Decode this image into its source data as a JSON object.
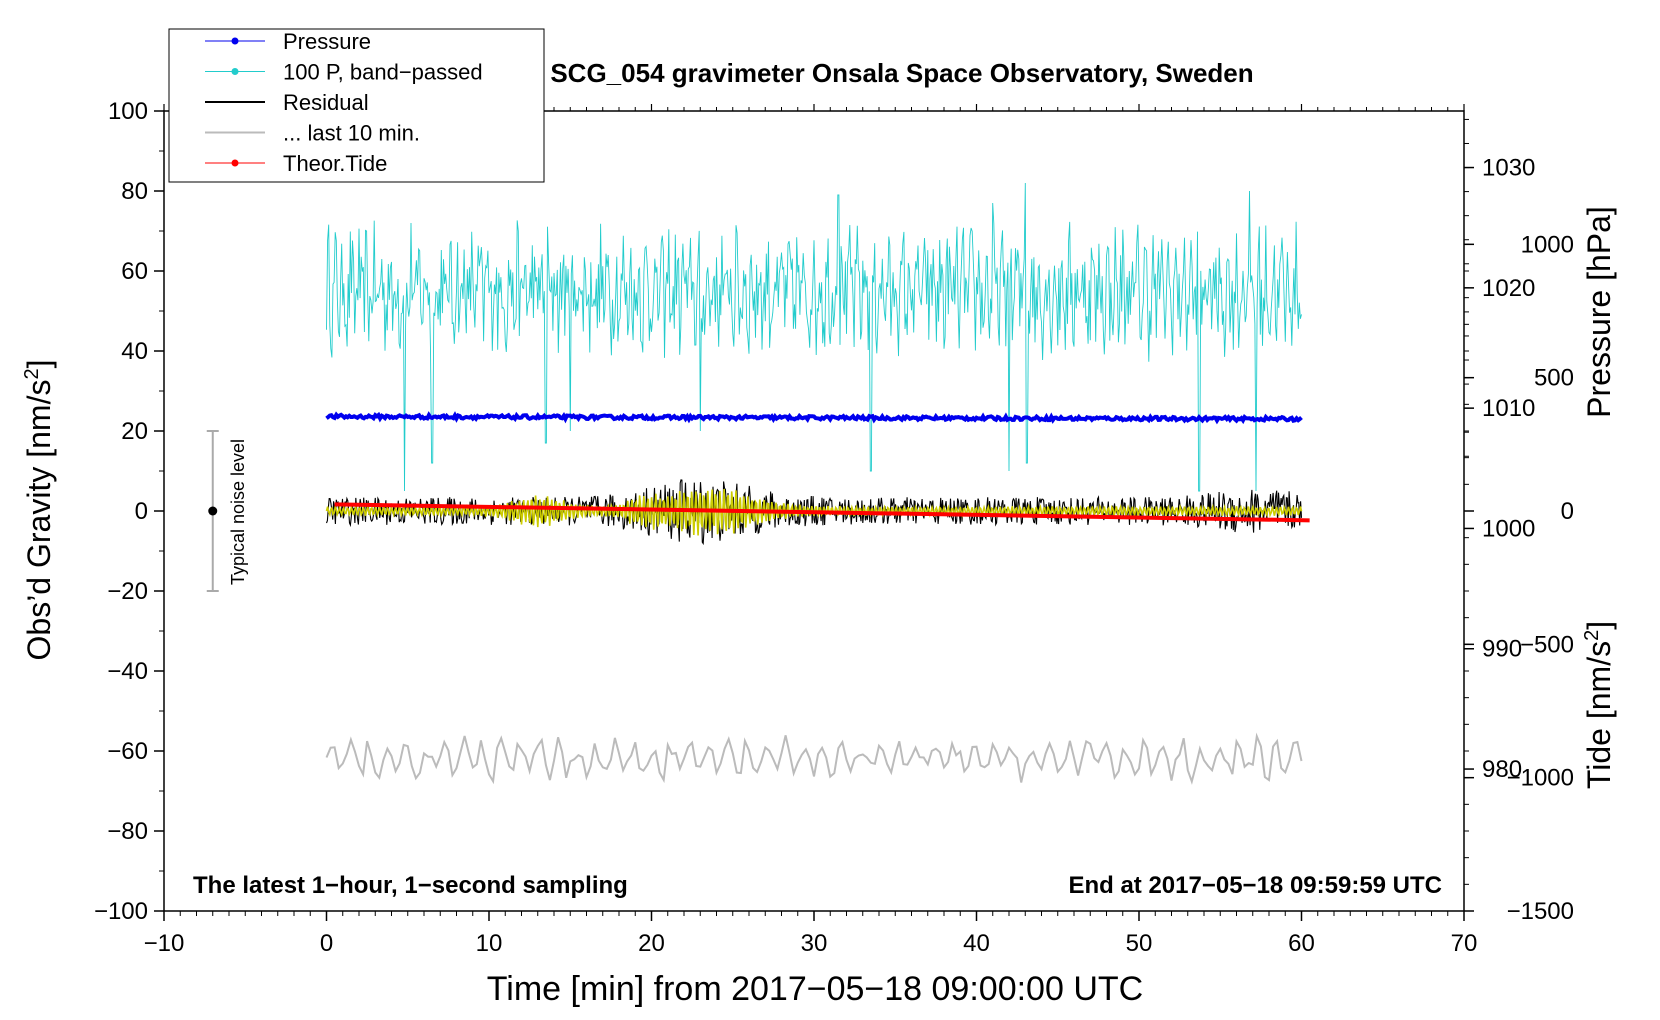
{
  "chart_data": {
    "type": "line",
    "title": "SCG_054 gravimeter Onsala Space Observatory, Sweden",
    "xlabel": "Time [min] from 2017−05−18 09:00:00 UTC",
    "ylabel_left_main": "Obs’d Gravity [nm/s",
    "ylabel_left_sup": "2",
    "ylabel_left_close": "]",
    "ylabel_right_top": "Pressure [hPa]",
    "ylabel_right_bottom_main": "Tide [nm/s",
    "ylabel_right_bottom_sup": "2",
    "ylabel_right_bottom_close": "]",
    "xlim": [
      -10,
      70
    ],
    "ylim": [
      -100,
      100
    ],
    "pressure_axis": {
      "ylim_hPa": [
        968.2,
        1034.7
      ],
      "ticks": [
        980,
        990,
        1000,
        1010,
        1020,
        1030
      ]
    },
    "tide_axis": {
      "ylim": [
        -1500,
        1500
      ],
      "ticks": [
        -1500,
        -1000,
        -500,
        0,
        500,
        1000
      ]
    },
    "x_ticks": [
      -10,
      0,
      10,
      20,
      30,
      40,
      50,
      60,
      70
    ],
    "y_ticks": [
      -100,
      -80,
      -60,
      -40,
      -20,
      0,
      20,
      40,
      60,
      80,
      100
    ],
    "x_tick_labels": [
      "−10",
      "0",
      "10",
      "20",
      "30",
      "40",
      "50",
      "60",
      "70"
    ],
    "y_tick_labels": [
      "−100",
      "−80",
      "−60",
      "−40",
      "−20",
      "0",
      "20",
      "40",
      "60",
      "80",
      "100"
    ],
    "pressure_tick_labels": [
      "980",
      "990",
      "1000",
      "1010",
      "1020",
      "1030"
    ],
    "tide_tick_labels": [
      "−1500",
      "−1000",
      "−500",
      "0",
      "500",
      "1000"
    ],
    "legend": {
      "placement": "top-left",
      "entries": [
        {
          "name": "Pressure",
          "color": "#0000ee",
          "marker": true
        },
        {
          "name": "100 P, band−passed",
          "color": "#22cccc",
          "marker": true
        },
        {
          "name": "Residual",
          "color": "#000000",
          "marker": false
        },
        {
          "name": "... last 10 min.",
          "color": "#bbbbbb",
          "marker": false
        },
        {
          "name": "Theor.Tide",
          "color": "#ff0000",
          "marker": true
        }
      ]
    },
    "series": [
      {
        "name": "Pressure",
        "color": "#0000ee",
        "axis": "pressure",
        "x_range": [
          0,
          60
        ],
        "start_hPa": 1009.3,
        "end_hPa": 1009.1,
        "jitter_hPa": 0.3
      },
      {
        "name": "100 P, band−passed",
        "color": "#22cccc",
        "axis": "gravity",
        "x_range": [
          0,
          60
        ],
        "baseline": 55,
        "min": 5,
        "max": 82,
        "spikes": [
          [
            4.8,
            5
          ],
          [
            6.5,
            12
          ],
          [
            5.2,
            72
          ],
          [
            13.5,
            17
          ],
          [
            15,
            20
          ],
          [
            23,
            20
          ],
          [
            31.5,
            79
          ],
          [
            33.5,
            10
          ],
          [
            41,
            77
          ],
          [
            42,
            10
          ],
          [
            43,
            82
          ],
          [
            43.1,
            12
          ],
          [
            53.7,
            5
          ],
          [
            56.8,
            80
          ],
          [
            57.2,
            5
          ]
        ]
      },
      {
        "name": "Residual",
        "color": "#000000",
        "axis": "gravity",
        "x_range": [
          0,
          60
        ],
        "baseline": 0,
        "min": -12,
        "max": 13
      },
      {
        "name": "Residual (filtered)",
        "color": "#cccc00",
        "axis": "gravity",
        "x_range": [
          0,
          60
        ],
        "baseline": 0,
        "min": -8,
        "max": 8
      },
      {
        "name": "... last 10 min.",
        "color": "#bbbbbb",
        "axis": "gravity",
        "x_range": [
          0,
          60
        ],
        "baseline": -62,
        "min": -68,
        "max": -53
      },
      {
        "name": "Theor.Tide",
        "color": "#ff0000",
        "axis": "tide",
        "x_range": [
          0.5,
          60.5
        ],
        "start": 25,
        "end": -35
      }
    ],
    "noise_bar": {
      "label": "Typical noise level",
      "x": -7,
      "center": 0,
      "low": -20,
      "high": 20
    },
    "annotations": {
      "bottom_left": "The latest 1−hour, 1−second sampling",
      "bottom_right": "End at 2017−05−18 09:59:59 UTC"
    }
  }
}
